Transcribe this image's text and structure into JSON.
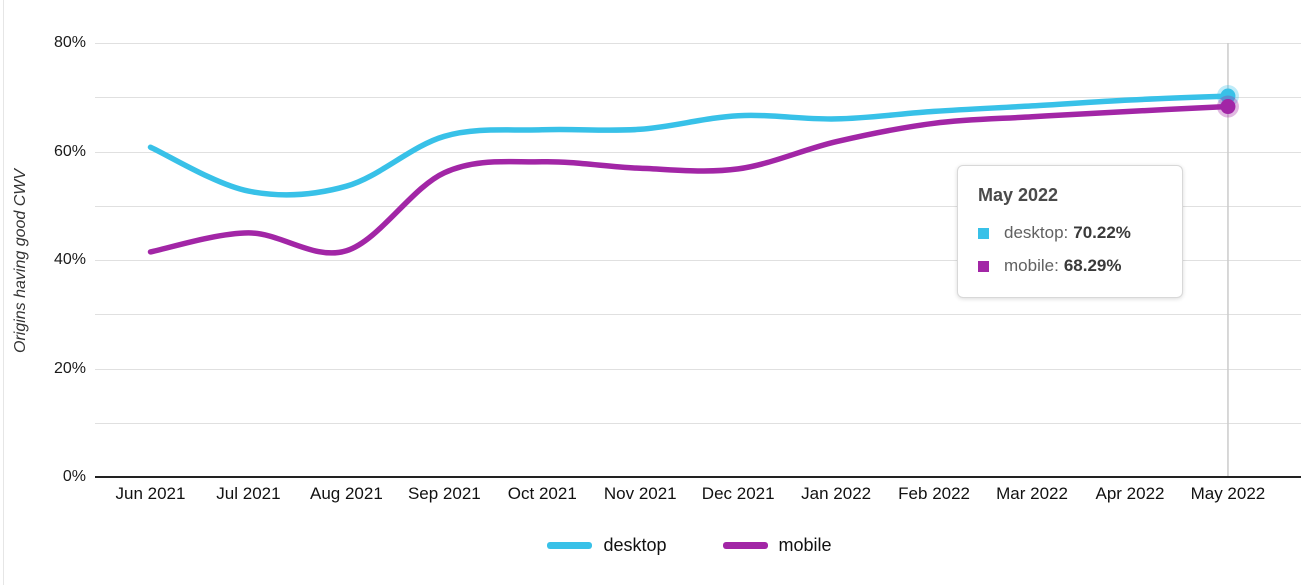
{
  "chart_data": {
    "type": "line",
    "title": "",
    "ylabel": "Origins having good CWV",
    "xlabel": "",
    "categories": [
      "Jun 2021",
      "Jul 2021",
      "Aug 2021",
      "Sep 2021",
      "Oct 2021",
      "Nov 2021",
      "Dec 2021",
      "Jan 2022",
      "Feb 2022",
      "Mar 2022",
      "Apr 2022",
      "May 2022"
    ],
    "series": [
      {
        "name": "desktop",
        "color": "#38C1E8",
        "values": [
          60.8,
          52.7,
          53.6,
          62.8,
          64.0,
          64.1,
          66.6,
          66.0,
          67.4,
          68.4,
          69.5,
          70.22
        ]
      },
      {
        "name": "mobile",
        "color": "#A226A6",
        "values": [
          41.5,
          45.0,
          41.7,
          56.1,
          58.1,
          56.9,
          56.8,
          61.8,
          65.2,
          66.4,
          67.4,
          68.29
        ]
      }
    ],
    "y_ticks": [
      "0%",
      "20%",
      "40%",
      "60%",
      "80%"
    ],
    "y_tick_values": [
      0,
      20,
      40,
      60,
      80
    ],
    "ylim": [
      0,
      80
    ],
    "grid": "horizontal, minor lines every 10%",
    "legend_position": "bottom",
    "highlighted_x": "May 2022"
  },
  "tooltip": {
    "title": "May 2022",
    "rows": [
      {
        "series": "desktop",
        "label": "desktop:",
        "value": "70.22%",
        "color": "#38C1E8"
      },
      {
        "series": "mobile",
        "label": "mobile:",
        "value": "68.29%",
        "color": "#A226A6"
      }
    ]
  },
  "colors": {
    "desktop": "#38C1E8",
    "mobile": "#A226A6",
    "gridline": "#E0E0E0",
    "axis": "#222222",
    "crosshair": "#CBCBCB",
    "background": "#FFFFFF"
  }
}
